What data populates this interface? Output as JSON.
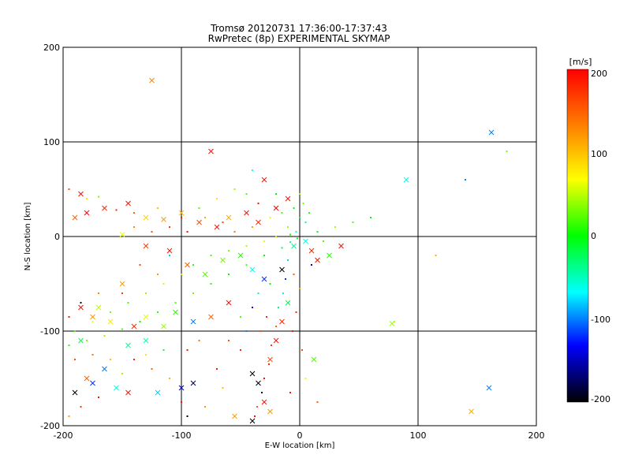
{
  "chart_data": {
    "type": "scatter",
    "title": "Tromsø 20120731 17:36:00-17:37:43",
    "subtitle": "RwPretec (8p) EXPERIMENTAL SKYMAP",
    "xlabel": "E-W location [km]",
    "ylabel": "N-S location [km]",
    "xlim": [
      -200,
      200
    ],
    "ylim": [
      -200,
      200
    ],
    "x_ticks": [
      "-200",
      "-100",
      "0",
      "100",
      "200"
    ],
    "y_ticks": [
      "200",
      "100",
      "0",
      "-100",
      "-200"
    ],
    "grid": true,
    "colorbar": {
      "unit": "[m/s]",
      "range": [
        -200,
        200
      ],
      "ticks": [
        "200",
        "100",
        "0",
        "-100",
        "-200"
      ],
      "colormap": [
        "#ff0000",
        "#ff8000",
        "#ffff00",
        "#00ff00",
        "#00ffff",
        "#0000ff",
        "#000000"
      ]
    },
    "points_x": [
      {
        "x": -125,
        "y": 165,
        "v": 130
      },
      {
        "x": -75,
        "y": 90,
        "v": 190
      },
      {
        "x": 162,
        "y": 110,
        "v": -100
      },
      {
        "x": 90,
        "y": 60,
        "v": -60
      },
      {
        "x": -30,
        "y": 60,
        "v": 190
      },
      {
        "x": -185,
        "y": 45,
        "v": 190
      },
      {
        "x": -190,
        "y": 20,
        "v": 150
      },
      {
        "x": -180,
        "y": 25,
        "v": 200
      },
      {
        "x": -165,
        "y": 30,
        "v": 180
      },
      {
        "x": -145,
        "y": 35,
        "v": 190
      },
      {
        "x": -130,
        "y": 20,
        "v": 90
      },
      {
        "x": -115,
        "y": 18,
        "v": 120
      },
      {
        "x": -100,
        "y": 25,
        "v": 100
      },
      {
        "x": -85,
        "y": 15,
        "v": 160
      },
      {
        "x": -70,
        "y": 10,
        "v": 190
      },
      {
        "x": -60,
        "y": 20,
        "v": 110
      },
      {
        "x": -45,
        "y": 25,
        "v": 190
      },
      {
        "x": -35,
        "y": 15,
        "v": 180
      },
      {
        "x": -20,
        "y": 30,
        "v": 200
      },
      {
        "x": -10,
        "y": 40,
        "v": 190
      },
      {
        "x": -150,
        "y": 2,
        "v": 60
      },
      {
        "x": -130,
        "y": -10,
        "v": 170
      },
      {
        "x": -110,
        "y": -15,
        "v": 190
      },
      {
        "x": -95,
        "y": -30,
        "v": 150
      },
      {
        "x": -80,
        "y": -40,
        "v": 20
      },
      {
        "x": -65,
        "y": -25,
        "v": 30
      },
      {
        "x": -50,
        "y": -20,
        "v": 10
      },
      {
        "x": -40,
        "y": -35,
        "v": -60
      },
      {
        "x": -30,
        "y": -45,
        "v": -120
      },
      {
        "x": -15,
        "y": -35,
        "v": -200
      },
      {
        "x": -5,
        "y": -10,
        "v": -40
      },
      {
        "x": 5,
        "y": -5,
        "v": -60
      },
      {
        "x": 10,
        "y": -15,
        "v": 180
      },
      {
        "x": 15,
        "y": -25,
        "v": 190
      },
      {
        "x": 25,
        "y": -20,
        "v": 10
      },
      {
        "x": 35,
        "y": -10,
        "v": 190
      },
      {
        "x": 12,
        "y": -130,
        "v": 20
      },
      {
        "x": 78,
        "y": -92,
        "v": 40
      },
      {
        "x": 160,
        "y": -160,
        "v": -100
      },
      {
        "x": 145,
        "y": -185,
        "v": 110
      },
      {
        "x": -185,
        "y": -75,
        "v": 190
      },
      {
        "x": -175,
        "y": -85,
        "v": 120
      },
      {
        "x": -170,
        "y": -75,
        "v": 50
      },
      {
        "x": -160,
        "y": -90,
        "v": 80
      },
      {
        "x": -150,
        "y": -50,
        "v": 120
      },
      {
        "x": -140,
        "y": -95,
        "v": 180
      },
      {
        "x": -130,
        "y": -85,
        "v": 60
      },
      {
        "x": -115,
        "y": -95,
        "v": 40
      },
      {
        "x": -105,
        "y": -80,
        "v": 10
      },
      {
        "x": -90,
        "y": -90,
        "v": -100
      },
      {
        "x": -75,
        "y": -85,
        "v": 150
      },
      {
        "x": -60,
        "y": -70,
        "v": 190
      },
      {
        "x": -130,
        "y": -110,
        "v": -50
      },
      {
        "x": -145,
        "y": -115,
        "v": -40
      },
      {
        "x": -185,
        "y": -110,
        "v": -20
      },
      {
        "x": -165,
        "y": -140,
        "v": -100
      },
      {
        "x": -180,
        "y": -150,
        "v": 150
      },
      {
        "x": -190,
        "y": -165,
        "v": -200
      },
      {
        "x": -175,
        "y": -155,
        "v": -120
      },
      {
        "x": -155,
        "y": -160,
        "v": -60
      },
      {
        "x": -145,
        "y": -165,
        "v": 190
      },
      {
        "x": -120,
        "y": -165,
        "v": -80
      },
      {
        "x": -100,
        "y": -160,
        "v": -150
      },
      {
        "x": -90,
        "y": -155,
        "v": -180
      },
      {
        "x": -55,
        "y": -190,
        "v": 120
      },
      {
        "x": -40,
        "y": -145,
        "v": -200
      },
      {
        "x": -35,
        "y": -155,
        "v": -200
      },
      {
        "x": -30,
        "y": -175,
        "v": 190
      },
      {
        "x": -25,
        "y": -185,
        "v": 120
      },
      {
        "x": -40,
        "y": -195,
        "v": -200
      },
      {
        "x": -20,
        "y": -110,
        "v": 190
      },
      {
        "x": -25,
        "y": -130,
        "v": 160
      },
      {
        "x": -15,
        "y": -90,
        "v": 180
      },
      {
        "x": -10,
        "y": -70,
        "v": -20
      }
    ],
    "points_dot": [
      {
        "x": -195,
        "y": 50,
        "v": 160
      },
      {
        "x": -180,
        "y": 40,
        "v": 80
      },
      {
        "x": -170,
        "y": 42,
        "v": 30
      },
      {
        "x": -155,
        "y": 28,
        "v": 180
      },
      {
        "x": -140,
        "y": 25,
        "v": 150
      },
      {
        "x": -120,
        "y": 30,
        "v": 100
      },
      {
        "x": -110,
        "y": 10,
        "v": 170
      },
      {
        "x": -95,
        "y": 5,
        "v": 190
      },
      {
        "x": -80,
        "y": 20,
        "v": 110
      },
      {
        "x": -65,
        "y": 15,
        "v": 160
      },
      {
        "x": -55,
        "y": 5,
        "v": 140
      },
      {
        "x": -40,
        "y": 10,
        "v": 120
      },
      {
        "x": -25,
        "y": 20,
        "v": 60
      },
      {
        "x": -15,
        "y": 25,
        "v": 20
      },
      {
        "x": -5,
        "y": 30,
        "v": 0
      },
      {
        "x": 0,
        "y": 20,
        "v": -20
      },
      {
        "x": 5,
        "y": 15,
        "v": -40
      },
      {
        "x": 8,
        "y": 25,
        "v": 10
      },
      {
        "x": 3,
        "y": 35,
        "v": 30
      },
      {
        "x": -10,
        "y": 10,
        "v": 40
      },
      {
        "x": -3,
        "y": 5,
        "v": -60
      },
      {
        "x": -8,
        "y": 2,
        "v": 0
      },
      {
        "x": -20,
        "y": 0,
        "v": 50
      },
      {
        "x": -30,
        "y": -5,
        "v": 60
      },
      {
        "x": -45,
        "y": -10,
        "v": 40
      },
      {
        "x": -60,
        "y": -15,
        "v": 30
      },
      {
        "x": -75,
        "y": -20,
        "v": 20
      },
      {
        "x": -90,
        "y": -30,
        "v": 10
      },
      {
        "x": -100,
        "y": -40,
        "v": 50
      },
      {
        "x": -115,
        "y": -50,
        "v": 80
      },
      {
        "x": -130,
        "y": -60,
        "v": 40
      },
      {
        "x": -145,
        "y": -70,
        "v": 20
      },
      {
        "x": -160,
        "y": -80,
        "v": 30
      },
      {
        "x": -175,
        "y": -90,
        "v": 60
      },
      {
        "x": -190,
        "y": -100,
        "v": 20
      },
      {
        "x": -195,
        "y": -115,
        "v": 10
      },
      {
        "x": -180,
        "y": -110,
        "v": 30
      },
      {
        "x": -165,
        "y": -105,
        "v": 40
      },
      {
        "x": -150,
        "y": -98,
        "v": 20
      },
      {
        "x": -135,
        "y": -90,
        "v": 0
      },
      {
        "x": -120,
        "y": -80,
        "v": 10
      },
      {
        "x": -105,
        "y": -70,
        "v": 20
      },
      {
        "x": -90,
        "y": -60,
        "v": 30
      },
      {
        "x": -75,
        "y": -50,
        "v": 10
      },
      {
        "x": -60,
        "y": -40,
        "v": 0
      },
      {
        "x": -45,
        "y": -30,
        "v": 20
      },
      {
        "x": -30,
        "y": -20,
        "v": 0
      },
      {
        "x": -15,
        "y": -12,
        "v": -20
      },
      {
        "x": -8,
        "y": -6,
        "v": -40
      },
      {
        "x": -2,
        "y": -2,
        "v": -10
      },
      {
        "x": -10,
        "y": -25,
        "v": -80
      },
      {
        "x": -12,
        "y": -45,
        "v": -120
      },
      {
        "x": -14,
        "y": -60,
        "v": -60
      },
      {
        "x": -18,
        "y": -75,
        "v": -30
      },
      {
        "x": -20,
        "y": -95,
        "v": 150
      },
      {
        "x": -24,
        "y": -115,
        "v": 170
      },
      {
        "x": -26,
        "y": -135,
        "v": 180
      },
      {
        "x": -30,
        "y": -150,
        "v": 190
      },
      {
        "x": -32,
        "y": -165,
        "v": -200
      },
      {
        "x": -36,
        "y": -180,
        "v": 150
      },
      {
        "x": -38,
        "y": -190,
        "v": 190
      },
      {
        "x": -5,
        "y": -40,
        "v": 150
      },
      {
        "x": 0,
        "y": -55,
        "v": 120
      },
      {
        "x": -3,
        "y": -80,
        "v": 180
      },
      {
        "x": -6,
        "y": -100,
        "v": 190
      },
      {
        "x": 2,
        "y": -120,
        "v": 160
      },
      {
        "x": 20,
        "y": -5,
        "v": 20
      },
      {
        "x": 15,
        "y": 5,
        "v": 0
      },
      {
        "x": 10,
        "y": -30,
        "v": -150
      },
      {
        "x": 30,
        "y": 10,
        "v": 40
      },
      {
        "x": 45,
        "y": 15,
        "v": 20
      },
      {
        "x": 60,
        "y": 20,
        "v": 0
      },
      {
        "x": 80,
        "y": -90,
        "v": 50
      },
      {
        "x": 115,
        "y": -20,
        "v": 110
      },
      {
        "x": 140,
        "y": 60,
        "v": -100
      },
      {
        "x": 175,
        "y": 90,
        "v": 30
      },
      {
        "x": -40,
        "y": 70,
        "v": -60
      },
      {
        "x": -55,
        "y": 50,
        "v": 40
      },
      {
        "x": -70,
        "y": 40,
        "v": 80
      },
      {
        "x": -85,
        "y": 30,
        "v": 20
      },
      {
        "x": -100,
        "y": 20,
        "v": 190
      },
      {
        "x": -110,
        "y": -20,
        "v": -80
      },
      {
        "x": -120,
        "y": -40,
        "v": 120
      },
      {
        "x": -135,
        "y": -30,
        "v": 160
      },
      {
        "x": -150,
        "y": -60,
        "v": 170
      },
      {
        "x": -170,
        "y": -60,
        "v": 130
      },
      {
        "x": -185,
        "y": -70,
        "v": -200
      },
      {
        "x": -195,
        "y": -85,
        "v": 190
      },
      {
        "x": -190,
        "y": -130,
        "v": 160
      },
      {
        "x": -175,
        "y": -125,
        "v": 140
      },
      {
        "x": -160,
        "y": -130,
        "v": 100
      },
      {
        "x": -140,
        "y": -130,
        "v": 190
      },
      {
        "x": -125,
        "y": -140,
        "v": 150
      },
      {
        "x": -110,
        "y": -150,
        "v": 110
      },
      {
        "x": -100,
        "y": -175,
        "v": 190
      },
      {
        "x": -95,
        "y": -190,
        "v": -200
      },
      {
        "x": -80,
        "y": -180,
        "v": 120
      },
      {
        "x": -70,
        "y": -140,
        "v": 190
      },
      {
        "x": -65,
        "y": -160,
        "v": 100
      },
      {
        "x": -50,
        "y": -120,
        "v": 180
      },
      {
        "x": -45,
        "y": -100,
        "v": -100
      },
      {
        "x": -60,
        "y": -110,
        "v": 160
      },
      {
        "x": -85,
        "y": -110,
        "v": 140
      },
      {
        "x": -95,
        "y": -120,
        "v": 190
      },
      {
        "x": -115,
        "y": -120,
        "v": -20
      },
      {
        "x": -130,
        "y": -125,
        "v": 80
      },
      {
        "x": -150,
        "y": -145,
        "v": 40
      },
      {
        "x": -170,
        "y": -170,
        "v": 190
      },
      {
        "x": -185,
        "y": -180,
        "v": 170
      },
      {
        "x": -195,
        "y": -190,
        "v": 120
      },
      {
        "x": -50,
        "y": -85,
        "v": 20
      },
      {
        "x": -35,
        "y": -60,
        "v": -40
      },
      {
        "x": -25,
        "y": -50,
        "v": 0
      },
      {
        "x": -40,
        "y": -75,
        "v": -140
      },
      {
        "x": -28,
        "y": -85,
        "v": 180
      },
      {
        "x": -33,
        "y": -100,
        "v": 160
      },
      {
        "x": 5,
        "y": -150,
        "v": 60
      },
      {
        "x": -8,
        "y": -165,
        "v": 190
      },
      {
        "x": 15,
        "y": -175,
        "v": 150
      },
      {
        "x": -140,
        "y": 10,
        "v": 130
      },
      {
        "x": -125,
        "y": 5,
        "v": 160
      },
      {
        "x": -35,
        "y": 35,
        "v": 190
      },
      {
        "x": -45,
        "y": 45,
        "v": 20
      },
      {
        "x": -20,
        "y": 45,
        "v": 0
      },
      {
        "x": 0,
        "y": 45,
        "v": 40
      }
    ]
  }
}
